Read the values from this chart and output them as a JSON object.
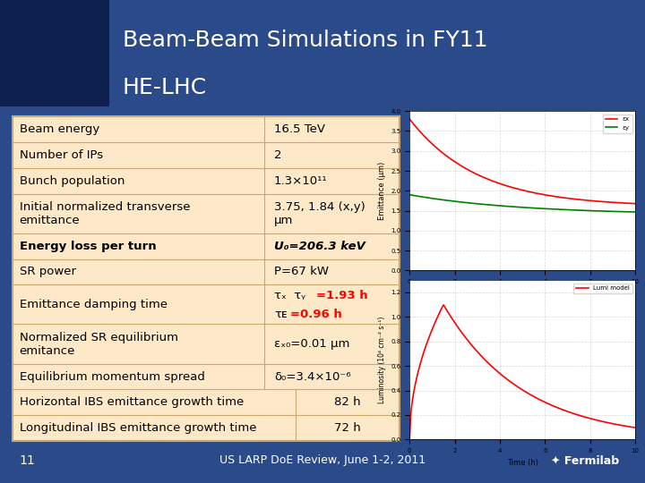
{
  "title_line1": "Beam-Beam Simulations in FY11",
  "title_line2": "HE-LHC",
  "title_color": "white",
  "header_bg": "#1a3a6b",
  "slide_bg": "#2a4a8a",
  "table_bg": "#fde8c8",
  "table_border": "#c8a870",
  "footer_text": "US LARP DoE Review, June 1-2, 2011",
  "slide_number": "11",
  "rows": [
    {
      "label": "Beam energy",
      "value": "16.5 TeV",
      "bold": false,
      "value_color": "black"
    },
    {
      "label": "Number of IPs",
      "value": "2",
      "bold": false,
      "value_color": "black"
    },
    {
      "label": "Bunch population",
      "value": "1.3×10¹¹",
      "bold": false,
      "value_color": "black"
    },
    {
      "label": "Initial normalized transverse\nemittance",
      "value": "3.75, 1.84 (x,y)\nμm",
      "bold": false,
      "value_color": "black"
    },
    {
      "label": "Energy loss per turn",
      "value": "U₀=206.3 keV",
      "bold": true,
      "value_color": "black"
    },
    {
      "label": "SR power",
      "value": "P=67 kW",
      "bold": false,
      "value_color": "black"
    },
    {
      "label": "Emittance damping time",
      "value": "τₓ  τᵧ=1.93 h\nτᴇ=0.96 h",
      "bold": false,
      "value_color": "red_black"
    },
    {
      "label": "Normalized SR equilibrium\nemitance",
      "value": "εₓ₀=0.01 μm",
      "bold": false,
      "value_color": "black"
    },
    {
      "label": "Equilibrium momentum spread",
      "value": "δ₀=3.4×10⁻⁶",
      "bold": false,
      "value_color": "black"
    },
    {
      "label": "Horizontal IBS emittance growth time",
      "value": "82 h",
      "bold": false,
      "value_color": "black",
      "split": true
    },
    {
      "label": "Longitudinal IBS emittance growth time",
      "value": "72 h",
      "bold": false,
      "value_color": "black",
      "split": true
    }
  ]
}
